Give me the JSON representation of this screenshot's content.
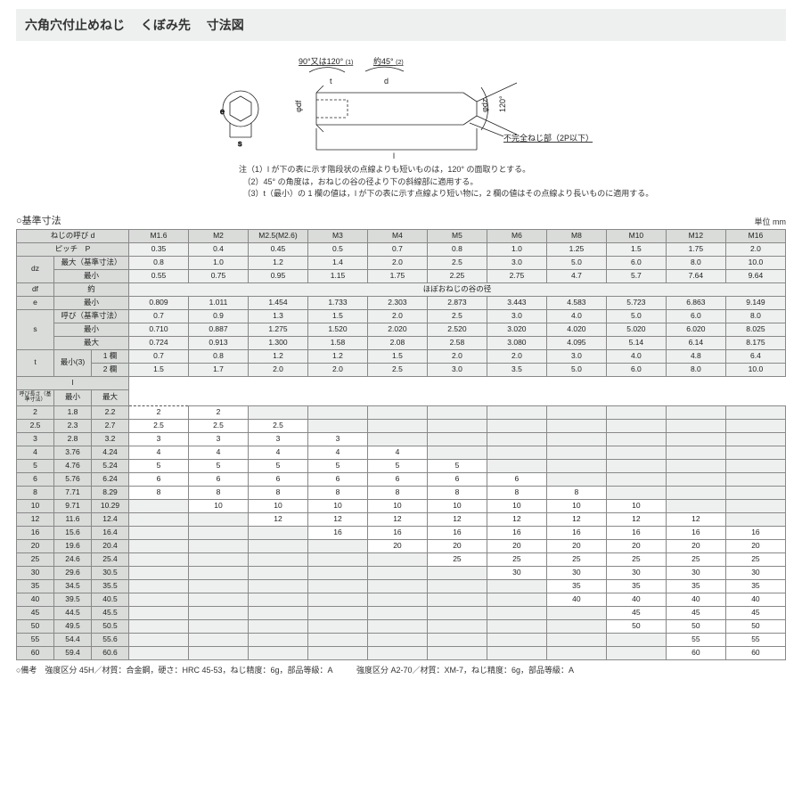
{
  "title": "六角穴付止めねじ　 くぼみ先　 寸法図",
  "diagram_labels": {
    "top_left": "90°又は120°",
    "top_left_sup": "(1)",
    "top_right": "約45°",
    "top_right_sup": "(2)",
    "t": "t",
    "d": "d",
    "e": "e",
    "s": "s",
    "df": "φdf",
    "dz": "φdz",
    "angle120": "120°",
    "l": "l",
    "incomplete": "不完全ねじ部（2P以下）"
  },
  "notes": [
    "注（1）l が下の表に示す階段状の点線よりも短いものは，120° の面取りとする。",
    "　（2）45° の角度は，おねじの谷の径より下の斜線部に適用する。",
    "　（3）t（最小）の 1 欄の値は，l が下の表に示す点線より短い物に，2 欄の値はその点線より長いものに適用する。"
  ],
  "section_title": "○基準寸法",
  "unit": "単位 mm",
  "columns": [
    "M1.6",
    "M2",
    "M2.5(M2.6)",
    "M3",
    "M4",
    "M5",
    "M6",
    "M8",
    "M10",
    "M12",
    "M16"
  ],
  "header_rows": [
    {
      "labelA": "ねじの呼び d",
      "spanA": 3,
      "cells": [
        "M1.6",
        "M2",
        "M2.5(M2.6)",
        "M3",
        "M4",
        "M5",
        "M6",
        "M8",
        "M10",
        "M12",
        "M16"
      ],
      "hdr": true
    },
    {
      "labelA": "ピッチ　P",
      "spanA": 3,
      "cells": [
        "0.35",
        "0.4",
        "0.45",
        "0.5",
        "0.7",
        "0.8",
        "1.0",
        "1.25",
        "1.5",
        "1.75",
        "2.0"
      ]
    },
    {
      "labelA": "dz",
      "labelB": "最大（基準寸法）",
      "spanA": 1,
      "spanB": 2,
      "labelA_rowspan": 2,
      "cells": [
        "0.8",
        "1.0",
        "1.2",
        "1.4",
        "2.0",
        "2.5",
        "3.0",
        "5.0",
        "6.0",
        "8.0",
        "10.0"
      ]
    },
    {
      "labelB": "最小",
      "spanB": 2,
      "cells": [
        "0.55",
        "0.75",
        "0.95",
        "1.15",
        "1.75",
        "2.25",
        "2.75",
        "4.7",
        "5.7",
        "7.64",
        "9.64"
      ]
    },
    {
      "labelA": "df",
      "labelB": "約",
      "spanA": 1,
      "spanB": 2,
      "merged_text": "ほぼおねじの谷の径",
      "merged": true
    },
    {
      "labelA": "e",
      "labelB": "最小",
      "spanA": 1,
      "spanB": 2,
      "cells": [
        "0.809",
        "1.011",
        "1.454",
        "1.733",
        "2.303",
        "2.873",
        "3.443",
        "4.583",
        "5.723",
        "6.863",
        "9.149"
      ]
    },
    {
      "labelA": "s",
      "labelB": "呼び（基準寸法）",
      "spanA": 1,
      "spanB": 2,
      "labelA_rowspan": 3,
      "cells": [
        "0.7",
        "0.9",
        "1.3",
        "1.5",
        "2.0",
        "2.5",
        "3.0",
        "4.0",
        "5.0",
        "6.0",
        "8.0"
      ]
    },
    {
      "labelB": "最小",
      "spanB": 2,
      "cells": [
        "0.710",
        "0.887",
        "1.275",
        "1.520",
        "2.020",
        "2.520",
        "3.020",
        "4.020",
        "5.020",
        "6.020",
        "8.025"
      ]
    },
    {
      "labelB": "最大",
      "spanB": 2,
      "cells": [
        "0.724",
        "0.913",
        "1.300",
        "1.58",
        "2.08",
        "2.58",
        "3.080",
        "4.095",
        "5.14",
        "6.14",
        "8.175"
      ]
    },
    {
      "labelA": "t",
      "labelB": "最小(3)",
      "labelC": "1 欄",
      "spanA": 1,
      "spanB": 1,
      "spanC": 1,
      "labelA_rowspan": 2,
      "labelB_rowspan": 2,
      "cells": [
        "0.7",
        "0.8",
        "1.2",
        "1.2",
        "1.5",
        "2.0",
        "2.0",
        "3.0",
        "4.0",
        "4.8",
        "6.4"
      ]
    },
    {
      "labelC": "2 欄",
      "spanC": 1,
      "cells": [
        "1.5",
        "1.7",
        "2.0",
        "2.0",
        "2.5",
        "3.0",
        "3.5",
        "5.0",
        "6.0",
        "8.0",
        "10.0"
      ]
    }
  ],
  "l_header": {
    "main": "l",
    "sub_left": "呼び長さ（基準寸法）",
    "sub_mid": "最小",
    "sub_right": "最大"
  },
  "l_rows": [
    {
      "nom": "2",
      "min": "1.8",
      "max": "2.2",
      "cells": [
        "2",
        "2",
        "",
        "",
        "",
        "",
        "",
        "",
        "",
        "",
        ""
      ]
    },
    {
      "nom": "2.5",
      "min": "2.3",
      "max": "2.7",
      "cells": [
        "2.5",
        "2.5",
        "2.5",
        "",
        "",
        "",
        "",
        "",
        "",
        "",
        ""
      ]
    },
    {
      "nom": "3",
      "min": "2.8",
      "max": "3.2",
      "cells": [
        "3",
        "3",
        "3",
        "3",
        "",
        "",
        "",
        "",
        "",
        "",
        ""
      ]
    },
    {
      "nom": "4",
      "min": "3.76",
      "max": "4.24",
      "cells": [
        "4",
        "4",
        "4",
        "4",
        "4",
        "",
        "",
        "",
        "",
        "",
        ""
      ]
    },
    {
      "nom": "5",
      "min": "4.76",
      "max": "5.24",
      "cells": [
        "5",
        "5",
        "5",
        "5",
        "5",
        "5",
        "",
        "",
        "",
        "",
        ""
      ]
    },
    {
      "nom": "6",
      "min": "5.76",
      "max": "6.24",
      "cells": [
        "6",
        "6",
        "6",
        "6",
        "6",
        "6",
        "6",
        "",
        "",
        "",
        ""
      ]
    },
    {
      "nom": "8",
      "min": "7.71",
      "max": "8.29",
      "cells": [
        "8",
        "8",
        "8",
        "8",
        "8",
        "8",
        "8",
        "8",
        "",
        "",
        ""
      ]
    },
    {
      "nom": "10",
      "min": "9.71",
      "max": "10.29",
      "cells": [
        "",
        "10",
        "10",
        "10",
        "10",
        "10",
        "10",
        "10",
        "10",
        "",
        ""
      ]
    },
    {
      "nom": "12",
      "min": "11.6",
      "max": "12.4",
      "cells": [
        "",
        "",
        "12",
        "12",
        "12",
        "12",
        "12",
        "12",
        "12",
        "12",
        ""
      ]
    },
    {
      "nom": "16",
      "min": "15.6",
      "max": "16.4",
      "cells": [
        "",
        "",
        "",
        "16",
        "16",
        "16",
        "16",
        "16",
        "16",
        "16",
        "16"
      ]
    },
    {
      "nom": "20",
      "min": "19.6",
      "max": "20.4",
      "cells": [
        "",
        "",
        "",
        "",
        "20",
        "20",
        "20",
        "20",
        "20",
        "20",
        "20"
      ]
    },
    {
      "nom": "25",
      "min": "24.6",
      "max": "25.4",
      "cells": [
        "",
        "",
        "",
        "",
        "",
        "25",
        "25",
        "25",
        "25",
        "25",
        "25"
      ]
    },
    {
      "nom": "30",
      "min": "29.6",
      "max": "30.5",
      "cells": [
        "",
        "",
        "",
        "",
        "",
        "",
        "30",
        "30",
        "30",
        "30",
        "30"
      ]
    },
    {
      "nom": "35",
      "min": "34.5",
      "max": "35.5",
      "cells": [
        "",
        "",
        "",
        "",
        "",
        "",
        "",
        "35",
        "35",
        "35",
        "35"
      ]
    },
    {
      "nom": "40",
      "min": "39.5",
      "max": "40.5",
      "cells": [
        "",
        "",
        "",
        "",
        "",
        "",
        "",
        "40",
        "40",
        "40",
        "40"
      ]
    },
    {
      "nom": "45",
      "min": "44.5",
      "max": "45.5",
      "cells": [
        "",
        "",
        "",
        "",
        "",
        "",
        "",
        "",
        "45",
        "45",
        "45"
      ]
    },
    {
      "nom": "50",
      "min": "49.5",
      "max": "50.5",
      "cells": [
        "",
        "",
        "",
        "",
        "",
        "",
        "",
        "",
        "50",
        "50",
        "50"
      ]
    },
    {
      "nom": "55",
      "min": "54.4",
      "max": "55.6",
      "cells": [
        "",
        "",
        "",
        "",
        "",
        "",
        "",
        "",
        "",
        "55",
        "55"
      ]
    },
    {
      "nom": "60",
      "min": "59.4",
      "max": "60.6",
      "cells": [
        "",
        "",
        "",
        "",
        "",
        "",
        "",
        "",
        "",
        "60",
        "60"
      ]
    }
  ],
  "border_before": [
    0,
    1,
    0,
    0,
    0,
    3,
    0,
    3,
    4,
    5,
    6,
    7
  ],
  "footer": "○備考　強度区分 45H／材質：合金鋼，硬さ：HRC 45-53，ねじ精度：6g，部品等級：A　　　強度区分 A2-70／材質：XM-7，ねじ精度：6g，部品等級：A"
}
